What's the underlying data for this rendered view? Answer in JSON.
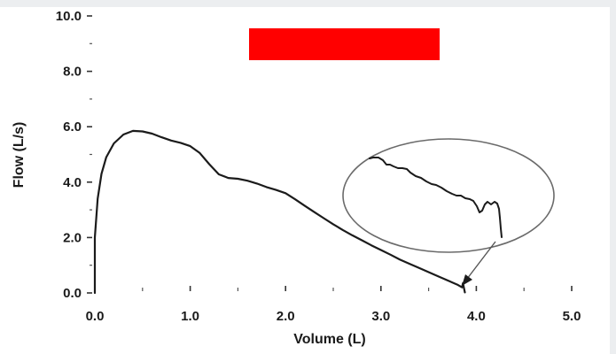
{
  "colors": {
    "background": "#eceef0",
    "panel": "#ffffff",
    "curve": "#1b1b1b",
    "redaction": "#ff0000"
  },
  "chart_data": {
    "type": "line",
    "title": "",
    "xlabel": "Volume (L)",
    "ylabel": "Flow (L/s)",
    "xlim": [
      0,
      5
    ],
    "ylim": [
      0,
      10
    ],
    "x_ticks": [
      "0.0",
      "1.0",
      "2.0",
      "3.0",
      "4.0",
      "5.0"
    ],
    "y_ticks": [
      "0.0",
      "2.0",
      "4.0",
      "6.0",
      "8.0",
      "10.0"
    ],
    "grid": false,
    "legend": "none",
    "series": [
      {
        "x": [
          0.0,
          0.0,
          0.03,
          0.07,
          0.12,
          0.2,
          0.3,
          0.4,
          0.5,
          0.6,
          0.7,
          0.8,
          0.9,
          1.0,
          1.1,
          1.2,
          1.3,
          1.4,
          1.5,
          1.6,
          1.7,
          1.8,
          1.9,
          2.0,
          2.1,
          2.2,
          2.3,
          2.4,
          2.5,
          2.6,
          2.7,
          2.8,
          2.9,
          3.0,
          3.1,
          3.2,
          3.3,
          3.4,
          3.5,
          3.6,
          3.7,
          3.8,
          3.85,
          3.86,
          3.88
        ],
        "y": [
          0.0,
          2.0,
          3.4,
          4.3,
          4.9,
          5.4,
          5.72,
          5.85,
          5.83,
          5.75,
          5.62,
          5.5,
          5.42,
          5.3,
          5.05,
          4.65,
          4.28,
          4.15,
          4.12,
          4.05,
          3.95,
          3.82,
          3.72,
          3.6,
          3.38,
          3.15,
          2.92,
          2.7,
          2.48,
          2.27,
          2.08,
          1.9,
          1.72,
          1.55,
          1.38,
          1.2,
          1.05,
          0.9,
          0.75,
          0.6,
          0.45,
          0.3,
          0.2,
          0.35,
          0.02
        ]
      }
    ],
    "inset": {
      "shape": "ellipse",
      "zoom_of_x_range": [
        3.5,
        3.9
      ],
      "pointer": "arrow from ellipse to curve end near 3.9 L"
    },
    "redaction_box": true
  }
}
